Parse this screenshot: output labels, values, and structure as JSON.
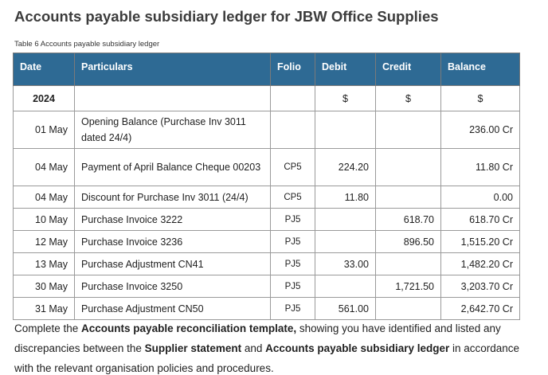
{
  "document": {
    "title": "Accounts payable subsidiary ledger for JBW Office Supplies",
    "caption": "Table 6 Accounts payable subsidiary ledger"
  },
  "table": {
    "headers": {
      "date": "Date",
      "particulars": "Particulars",
      "folio": "Folio",
      "debit": "Debit",
      "credit": "Credit",
      "balance": "Balance"
    },
    "subheader": {
      "year": "2024",
      "debit_unit": "$",
      "credit_unit": "$",
      "balance_unit": "$"
    },
    "rows": [
      {
        "date": "01 May",
        "particulars": "Opening Balance (Purchase Inv 3011 dated 24/4)",
        "folio": "",
        "debit": "",
        "credit": "",
        "balance": "236.00 Cr"
      },
      {
        "date": "04 May",
        "particulars": "Payment of April Balance Cheque 00203",
        "folio": "CP5",
        "debit": "224.20",
        "credit": "",
        "balance": "11.80 Cr"
      },
      {
        "date": "04 May",
        "particulars": "Discount for Purchase Inv 3011 (24/4)",
        "folio": "CP5",
        "debit": "11.80",
        "credit": "",
        "balance": "0.00"
      },
      {
        "date": "10 May",
        "particulars": "Purchase Invoice 3222",
        "folio": "PJ5",
        "debit": "",
        "credit": "618.70",
        "balance": "618.70 Cr"
      },
      {
        "date": "12 May",
        "particulars": "Purchase Invoice 3236",
        "folio": "PJ5",
        "debit": "",
        "credit": "896.50",
        "balance": "1,515.20 Cr"
      },
      {
        "date": "13 May",
        "particulars": "Purchase Adjustment CN41",
        "folio": "PJ5",
        "debit": "33.00",
        "credit": "",
        "balance": "1,482.20 Cr"
      },
      {
        "date": "30 May",
        "particulars": "Purchase Invoice 3250",
        "folio": "PJ5",
        "debit": "",
        "credit": "1,721.50",
        "balance": "3,203.70 Cr"
      },
      {
        "date": "31 May",
        "particulars": "Purchase Adjustment CN50",
        "folio": "PJ5",
        "debit": "561.00",
        "credit": "",
        "balance": "2,642.70 Cr"
      }
    ]
  },
  "instruction": {
    "part1": "Complete the ",
    "bold1": "Accounts payable reconciliation template,",
    "part2": " showing you have identified and listed any discrepancies between the ",
    "bold2": "Supplier statement",
    "part3": " and ",
    "bold3": "Accounts payable subsidiary ledger",
    "part4": " in accordance with the relevant organisation policies and procedures."
  }
}
